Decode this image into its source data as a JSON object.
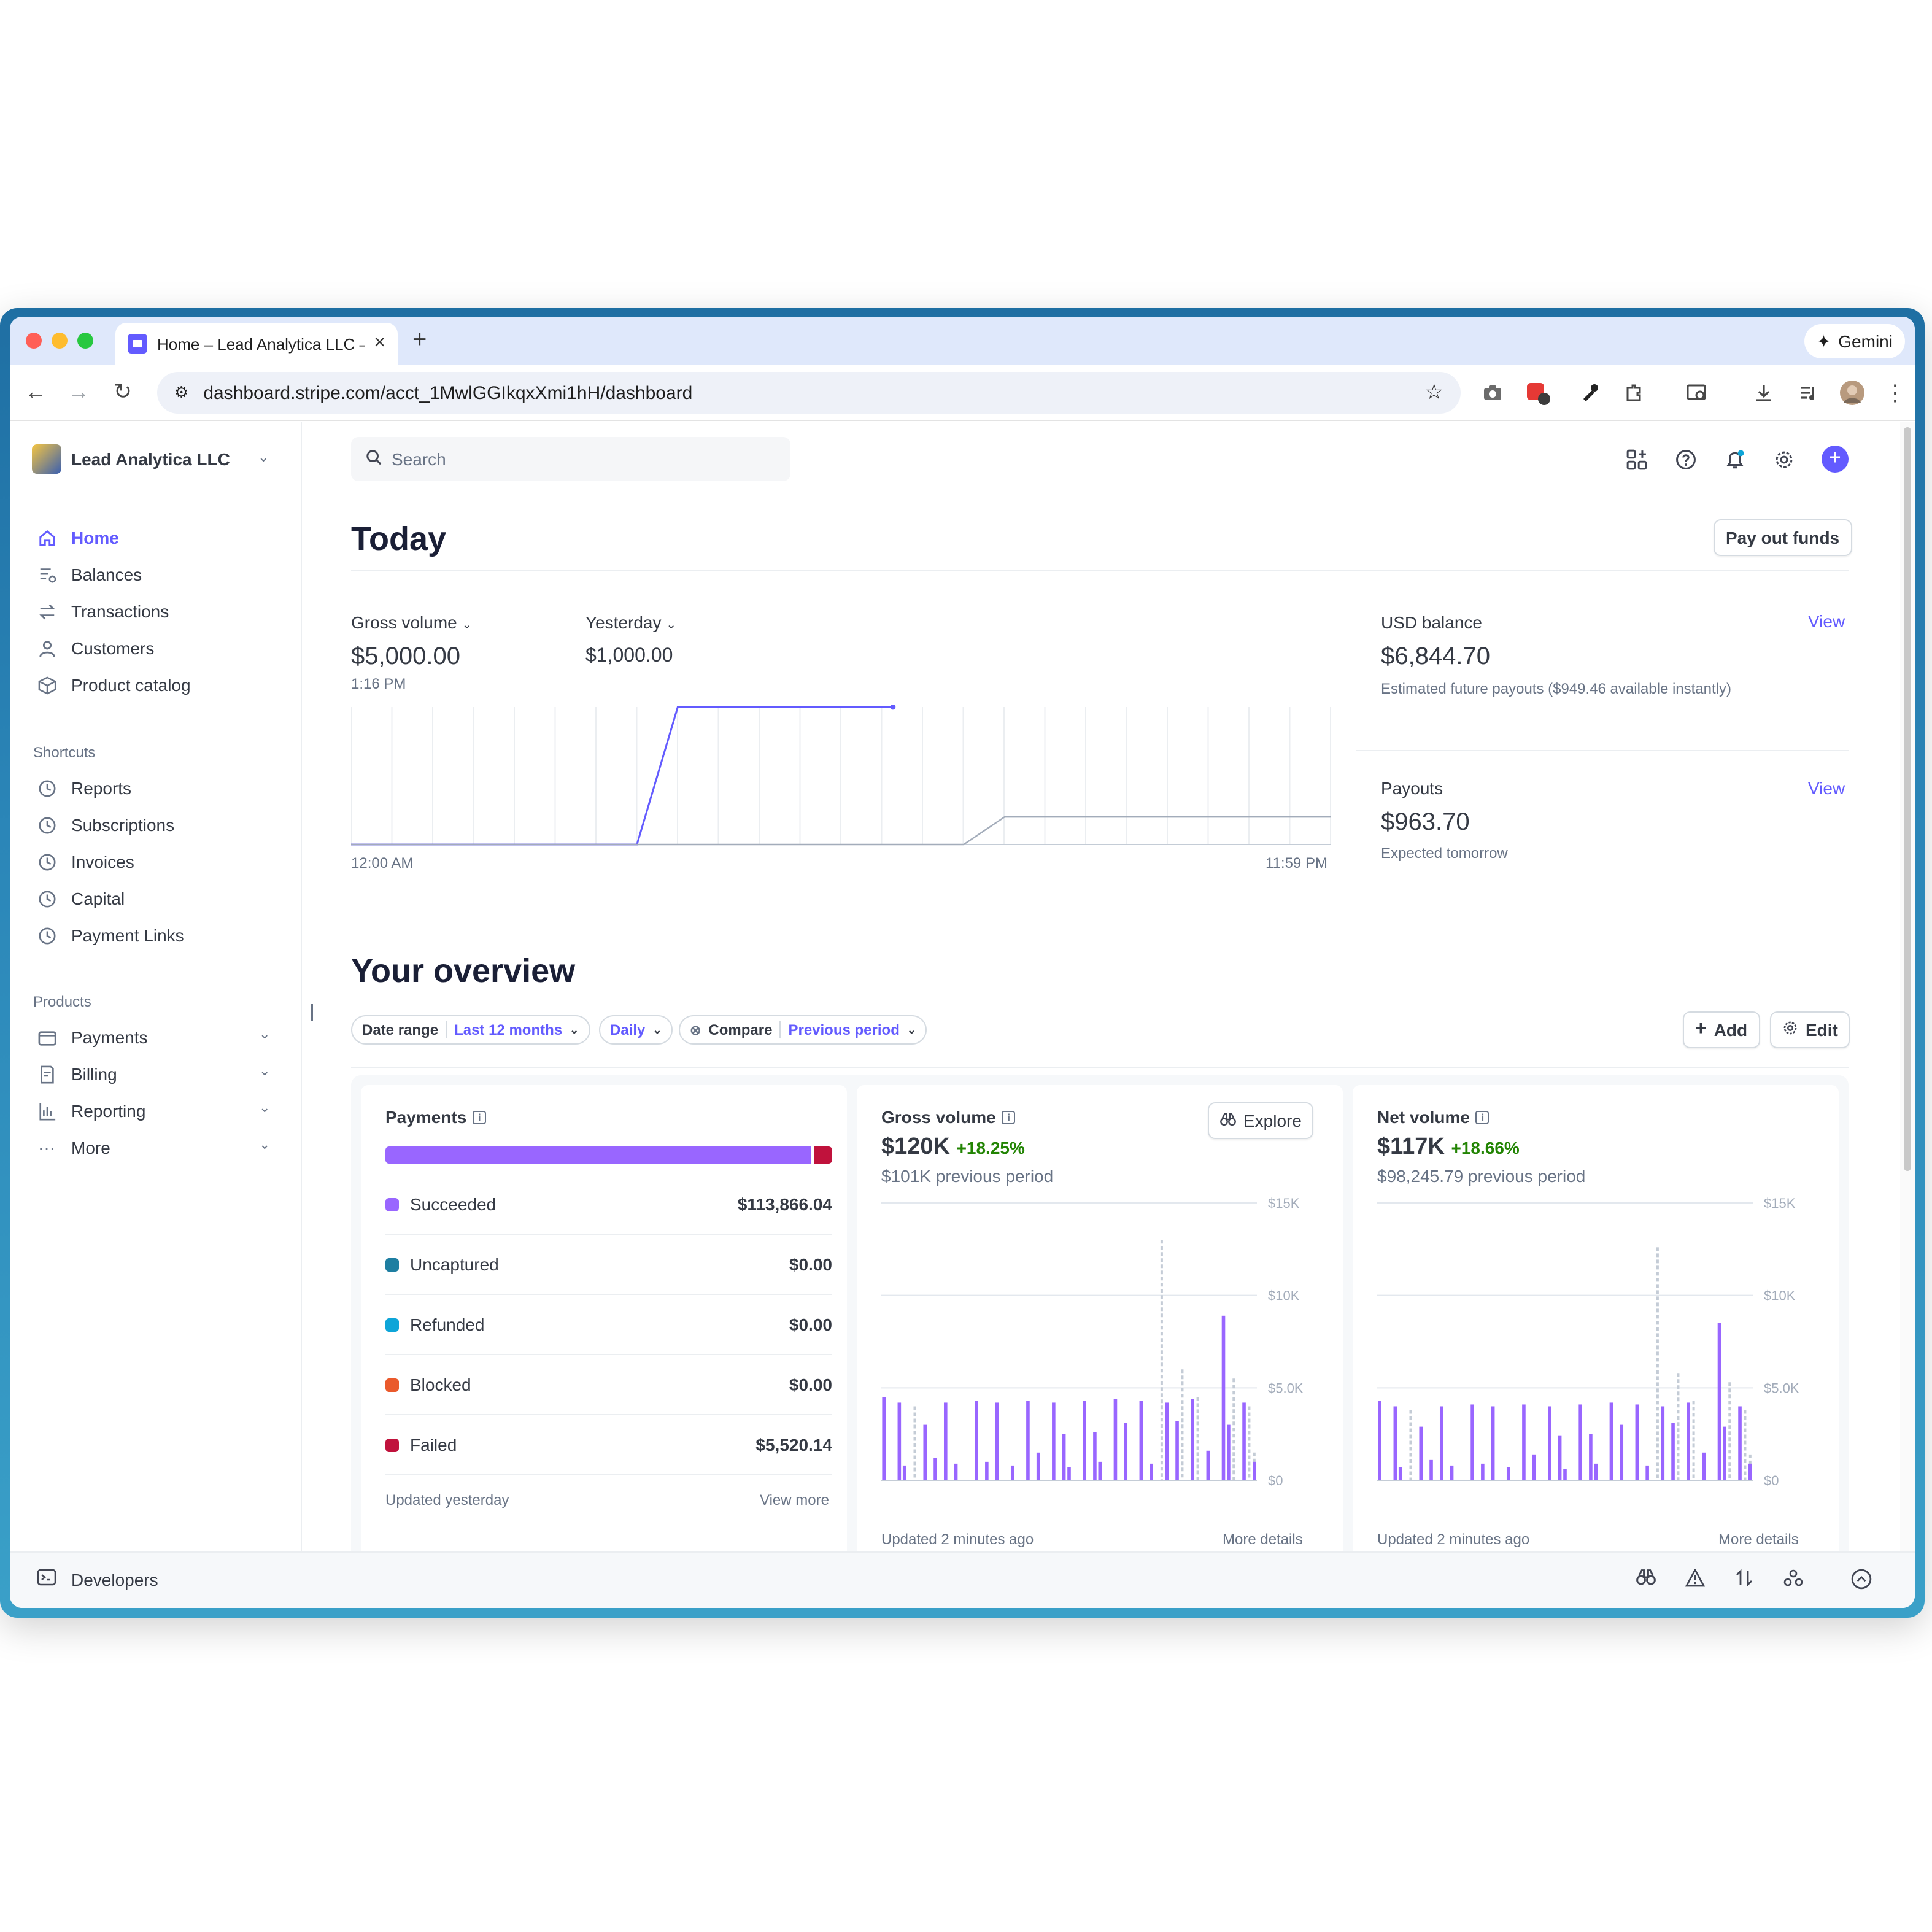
{
  "browser": {
    "tab_title": "Home – Lead Analytica LLC –",
    "new_tab": "+",
    "gemini_label": "Gemini",
    "url": "dashboard.stripe.com/acct_1MwlGGIkqxXmi1hH/dashboard",
    "extension_badge": "2"
  },
  "account": {
    "name": "Lead Analytica LLC"
  },
  "sidebar": {
    "main": [
      {
        "label": "Home",
        "icon": "home-icon"
      },
      {
        "label": "Balances",
        "icon": "balances-icon"
      },
      {
        "label": "Transactions",
        "icon": "transactions-icon"
      },
      {
        "label": "Customers",
        "icon": "customers-icon"
      },
      {
        "label": "Product catalog",
        "icon": "product-catalog-icon"
      }
    ],
    "shortcuts_title": "Shortcuts",
    "shortcuts": [
      "Reports",
      "Subscriptions",
      "Invoices",
      "Capital",
      "Payment Links"
    ],
    "products_title": "Products",
    "products": [
      "Payments",
      "Billing",
      "Reporting",
      "More"
    ]
  },
  "developers": {
    "label": "Developers"
  },
  "search": {
    "placeholder": "Search"
  },
  "today": {
    "title": "Today",
    "payout_button": "Pay out funds",
    "gross_volume_label": "Gross volume",
    "gross_volume_value": "$5,000.00",
    "gross_volume_time": "1:16 PM",
    "compare_label": "Yesterday",
    "compare_value": "$1,000.00",
    "x_start": "12:00 AM",
    "x_end": "11:59 PM",
    "usd_balance_label": "USD balance",
    "usd_balance_value": "$6,844.70",
    "usd_balance_note": "Estimated future payouts ($949.46 available instantly)",
    "payouts_label": "Payouts",
    "payouts_value": "$963.70",
    "payouts_note": "Expected tomorrow",
    "view_link": "View"
  },
  "overview": {
    "title": "Your overview",
    "date_range_label": "Date range",
    "date_range_value": "Last 12 months",
    "interval_value": "Daily",
    "compare_label": "Compare",
    "compare_value": "Previous period",
    "add_button": "Add",
    "edit_button": "Edit"
  },
  "payments_card": {
    "title": "Payments",
    "rows": [
      {
        "label": "Succeeded",
        "amount": "$113,866.04",
        "color": "#9966ff"
      },
      {
        "label": "Uncaptured",
        "amount": "$0.00",
        "color": "#1e7ea1"
      },
      {
        "label": "Refunded",
        "amount": "$0.00",
        "color": "#0ea5d8"
      },
      {
        "label": "Blocked",
        "amount": "$0.00",
        "color": "#ea5a2c"
      },
      {
        "label": "Failed",
        "amount": "$5,520.14",
        "color": "#c0123c"
      }
    ],
    "updated": "Updated yesterday",
    "view_more": "View more"
  },
  "gross_card": {
    "title": "Gross volume",
    "explore_button": "Explore",
    "value": "$120K",
    "change": "+18.25%",
    "previous": "$101K previous period",
    "updated": "Updated 2 minutes ago",
    "more": "More details"
  },
  "net_card": {
    "title": "Net volume",
    "value": "$117K",
    "change": "+18.66%",
    "previous": "$98,245.79 previous period",
    "updated": "Updated 2 minutes ago",
    "more": "More details"
  },
  "colors": {
    "accent": "#635bff",
    "positive": "#228403",
    "succeeded": "#9966ff",
    "failed": "#c0123c"
  },
  "chart_data": [
    {
      "type": "line",
      "xlabel": "",
      "ylabel": "",
      "x_range": [
        "12:00 AM",
        "11:59 PM"
      ],
      "series": [
        {
          "name": "Gross volume",
          "x": [
            "12:00 AM",
            "7:00 AM",
            "8:00 AM",
            "1:16 PM"
          ],
          "values": [
            0,
            0,
            5000,
            5000
          ]
        },
        {
          "name": "Yesterday",
          "x": [
            "12:00 AM",
            "3:00 PM",
            "4:00 PM",
            "11:59 PM"
          ],
          "values": [
            0,
            0,
            1000,
            1000
          ]
        }
      ],
      "ylim": [
        0,
        5000
      ],
      "grid": true
    },
    {
      "type": "bar",
      "title": "Gross volume",
      "x_range": [
        "Jan 1, 2025",
        "Dec 1, 2025"
      ],
      "yticks": [
        "$0",
        "$5.0K",
        "$10K",
        "$15K"
      ],
      "ylim": [
        0,
        15000
      ],
      "series": [
        {
          "name": "Current",
          "values": [
            4500,
            0,
            0,
            4200,
            800,
            0,
            0,
            0,
            3000,
            0,
            1200,
            0,
            4200,
            0,
            900,
            0,
            0,
            0,
            4300,
            0,
            1000,
            0,
            4200,
            0,
            0,
            800,
            0,
            0,
            4300,
            0,
            1500,
            0,
            0,
            4200,
            0,
            2500,
            700,
            0,
            0,
            4300,
            0,
            2600,
            1000,
            0,
            0,
            4400,
            0,
            3100,
            0,
            0,
            4300,
            0,
            900,
            0,
            0,
            4200,
            0,
            3200,
            0,
            0,
            4400,
            0,
            0,
            1600,
            0,
            0,
            8900,
            3000,
            0,
            0,
            4200,
            0,
            1000
          ]
        },
        {
          "name": "Previous period",
          "values": [
            0,
            0,
            0,
            0,
            0,
            0,
            4000,
            0,
            0,
            0,
            0,
            0,
            0,
            0,
            0,
            0,
            0,
            0,
            0,
            0,
            0,
            0,
            0,
            0,
            0,
            0,
            0,
            0,
            0,
            0,
            0,
            0,
            0,
            0,
            0,
            0,
            0,
            0,
            0,
            0,
            0,
            0,
            0,
            0,
            0,
            0,
            0,
            0,
            0,
            0,
            0,
            0,
            0,
            0,
            13000,
            0,
            0,
            0,
            6000,
            0,
            0,
            4500,
            0,
            0,
            0,
            0,
            0,
            0,
            5500,
            0,
            0,
            4000,
            1500
          ]
        }
      ]
    },
    {
      "type": "bar",
      "title": "Net volume",
      "x_range": [
        "Jan 1, 2025",
        "Dec 1, 2025"
      ],
      "yticks": [
        "$0",
        "$5.0K",
        "$10K",
        "$15K"
      ],
      "ylim": [
        0,
        15000
      ],
      "series": [
        {
          "name": "Current",
          "values": [
            4300,
            0,
            0,
            4000,
            700,
            0,
            0,
            0,
            2900,
            0,
            1100,
            0,
            4000,
            0,
            800,
            0,
            0,
            0,
            4100,
            0,
            900,
            0,
            4000,
            0,
            0,
            700,
            0,
            0,
            4100,
            0,
            1400,
            0,
            0,
            4000,
            0,
            2400,
            600,
            0,
            0,
            4100,
            0,
            2500,
            900,
            0,
            0,
            4200,
            0,
            3000,
            0,
            0,
            4100,
            0,
            800,
            0,
            0,
            4000,
            0,
            3100,
            0,
            0,
            4200,
            0,
            0,
            1500,
            0,
            0,
            8500,
            2900,
            0,
            0,
            4000,
            0,
            900
          ]
        },
        {
          "name": "Previous period",
          "values": [
            0,
            0,
            0,
            0,
            0,
            0,
            3800,
            0,
            0,
            0,
            0,
            0,
            0,
            0,
            0,
            0,
            0,
            0,
            0,
            0,
            0,
            0,
            0,
            0,
            0,
            0,
            0,
            0,
            0,
            0,
            0,
            0,
            0,
            0,
            0,
            0,
            0,
            0,
            0,
            0,
            0,
            0,
            0,
            0,
            0,
            0,
            0,
            0,
            0,
            0,
            0,
            0,
            0,
            0,
            12600,
            0,
            0,
            0,
            5800,
            0,
            0,
            4300,
            0,
            0,
            0,
            0,
            0,
            0,
            5300,
            0,
            0,
            3800,
            1400
          ]
        }
      ]
    }
  ]
}
